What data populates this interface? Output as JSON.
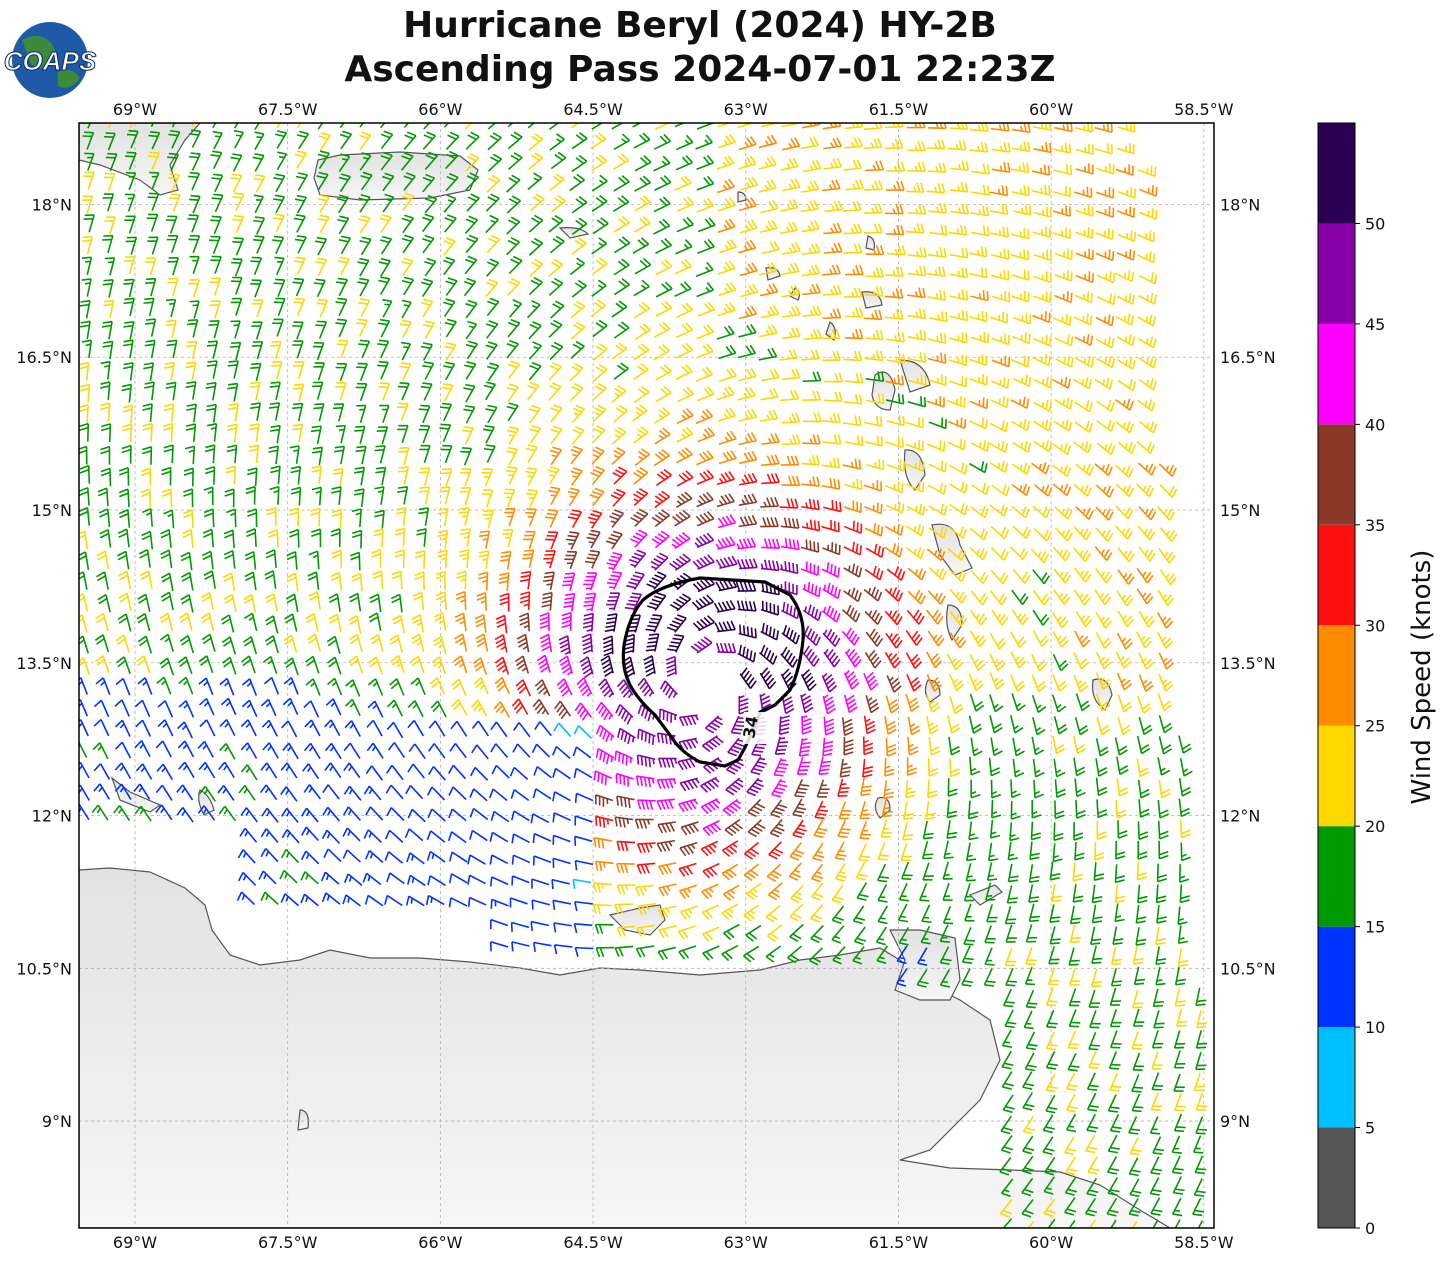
{
  "title_line1": "Hurricane Beryl (2024) HY-2B",
  "title_line2": "Ascending Pass 2024-07-01 22:23Z",
  "logo_text": "COAPS",
  "map": {
    "lon_range": [
      -69.55,
      -58.4
    ],
    "lat_range": [
      7.95,
      18.8
    ],
    "lon_ticks": [
      "69°W",
      "67.5°W",
      "66°W",
      "64.5°W",
      "63°W",
      "61.5°W",
      "60°W",
      "58.5°W"
    ],
    "lon_values": [
      -69,
      -67.5,
      -66,
      -64.5,
      -63,
      -61.5,
      -60,
      -58.5
    ],
    "lat_ticks": [
      "9°N",
      "10.5°N",
      "12°N",
      "13.5°N",
      "15°N",
      "16.5°N",
      "18°N"
    ],
    "lat_values": [
      9,
      10.5,
      12,
      13.5,
      15,
      16.5,
      18
    ],
    "storm_center": {
      "lon": -63.4,
      "lat": 13.3
    },
    "contour_label": "34"
  },
  "colorbar": {
    "label": "Wind Speed (knots)",
    "ticks": [
      "0",
      "5",
      "10",
      "15",
      "20",
      "25",
      "30",
      "35",
      "40",
      "45",
      "50"
    ],
    "bins": [
      {
        "min": 0,
        "max": 5,
        "color": "#555555"
      },
      {
        "min": 5,
        "max": 10,
        "color": "#00bfff"
      },
      {
        "min": 10,
        "max": 15,
        "color": "#0033ff"
      },
      {
        "min": 15,
        "max": 20,
        "color": "#009900"
      },
      {
        "min": 20,
        "max": 25,
        "color": "#ffd700"
      },
      {
        "min": 25,
        "max": 30,
        "color": "#ff8c00"
      },
      {
        "min": 30,
        "max": 35,
        "color": "#ff1010"
      },
      {
        "min": 35,
        "max": 40,
        "color": "#8b3a2a"
      },
      {
        "min": 40,
        "max": 45,
        "color": "#ff00ff"
      },
      {
        "min": 45,
        "max": 50,
        "color": "#8800aa"
      },
      {
        "min": 50,
        "max": 55,
        "color": "#2a0055"
      }
    ]
  }
}
